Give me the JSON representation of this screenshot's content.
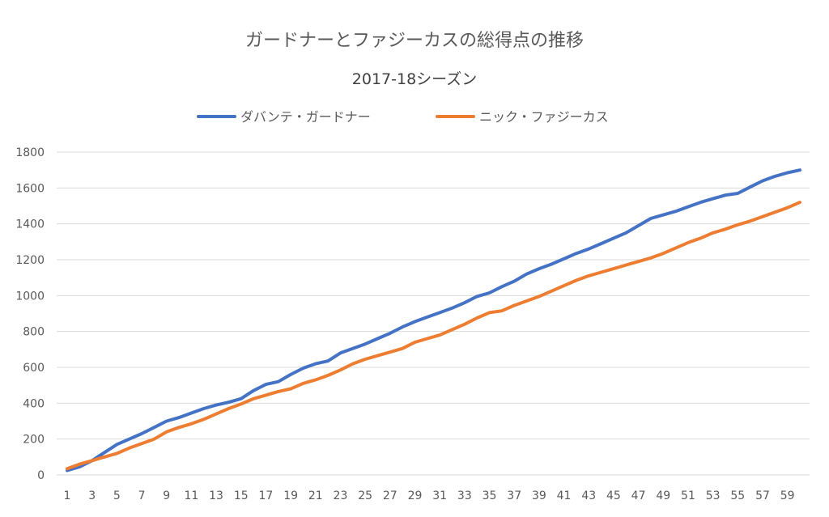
{
  "chart_data": {
    "type": "line",
    "title": "ガードナーとファジーカスの総得点の推移",
    "subtitle": "2017-18シーズン",
    "legend_position": "top",
    "grid": true,
    "ylim": [
      0,
      1800
    ],
    "y_ticks": [
      "0",
      "200",
      "400",
      "600",
      "800",
      "1000",
      "1200",
      "1400",
      "1600",
      "1800"
    ],
    "x_tick_labels": [
      "1",
      "3",
      "5",
      "7",
      "9",
      "11",
      "13",
      "15",
      "17",
      "19",
      "21",
      "23",
      "25",
      "27",
      "29",
      "31",
      "33",
      "35",
      "37",
      "39",
      "41",
      "43",
      "45",
      "47",
      "49",
      "51",
      "53",
      "55",
      "57",
      "59"
    ],
    "x": [
      1,
      2,
      3,
      4,
      5,
      6,
      7,
      8,
      9,
      10,
      11,
      12,
      13,
      14,
      15,
      16,
      17,
      18,
      19,
      20,
      21,
      22,
      23,
      24,
      25,
      26,
      27,
      28,
      29,
      30,
      31,
      32,
      33,
      34,
      35,
      36,
      37,
      38,
      39,
      40,
      41,
      42,
      43,
      44,
      45,
      46,
      47,
      48,
      49,
      50,
      51,
      52,
      53,
      54,
      55,
      56,
      57,
      58,
      59,
      60
    ],
    "series": [
      {
        "name": "ダバンテ・ガードナー",
        "color": "#4472C4",
        "values": [
          25,
          45,
          80,
          125,
          170,
          200,
          230,
          265,
          300,
          320,
          345,
          370,
          390,
          405,
          425,
          470,
          505,
          520,
          560,
          595,
          620,
          635,
          680,
          705,
          730,
          760,
          790,
          825,
          855,
          880,
          905,
          930,
          960,
          995,
          1015,
          1050,
          1080,
          1120,
          1150,
          1175,
          1205,
          1235,
          1260,
          1290,
          1320,
          1350,
          1390,
          1430,
          1450,
          1470,
          1495,
          1520,
          1540,
          1560,
          1570,
          1605,
          1640,
          1665,
          1685,
          1700
        ]
      },
      {
        "name": "ニック・ファジーカス",
        "color": "#ED7D31",
        "values": [
          35,
          60,
          80,
          100,
          120,
          150,
          175,
          200,
          240,
          265,
          285,
          310,
          340,
          370,
          395,
          425,
          445,
          465,
          480,
          510,
          530,
          555,
          585,
          620,
          645,
          665,
          685,
          705,
          740,
          760,
          780,
          810,
          840,
          875,
          905,
          915,
          945,
          970,
          995,
          1025,
          1055,
          1085,
          1110,
          1130,
          1150,
          1170,
          1190,
          1210,
          1235,
          1265,
          1295,
          1320,
          1350,
          1370,
          1395,
          1415,
          1440,
          1465,
          1490,
          1520
        ]
      }
    ]
  }
}
